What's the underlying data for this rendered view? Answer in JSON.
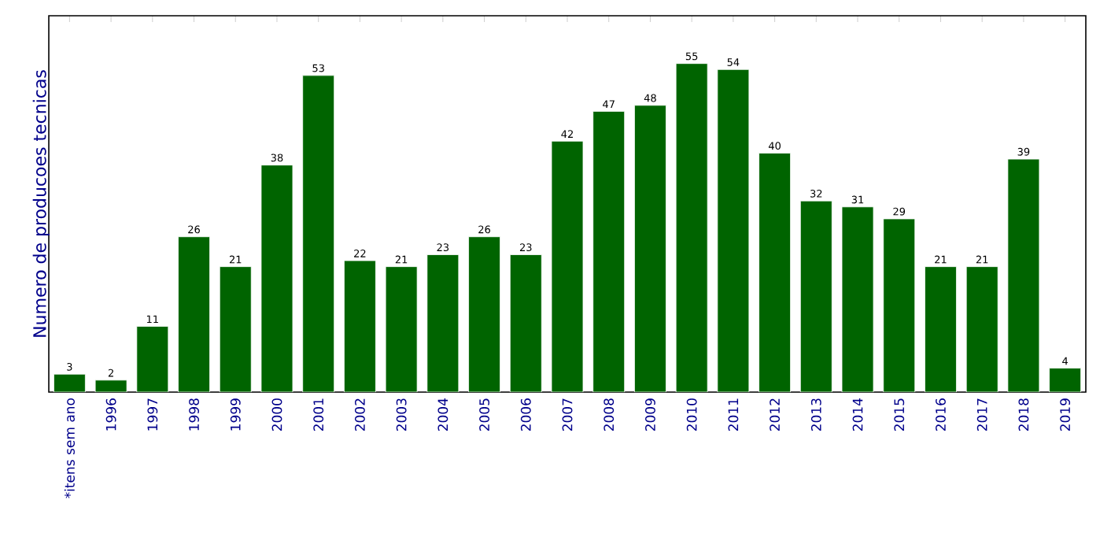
{
  "chart_data": {
    "type": "bar",
    "ylabel": "Numero de producoes tecnicas",
    "categories": [
      "*itens sem ano",
      "1996",
      "1997",
      "1998",
      "1999",
      "2000",
      "2001",
      "2002",
      "2003",
      "2004",
      "2005",
      "2006",
      "2007",
      "2008",
      "2009",
      "2010",
      "2011",
      "2012",
      "2013",
      "2014",
      "2015",
      "2016",
      "2017",
      "2018",
      "2019"
    ],
    "values": [
      3,
      2,
      11,
      26,
      21,
      38,
      53,
      22,
      21,
      23,
      26,
      23,
      42,
      47,
      48,
      55,
      54,
      40,
      32,
      31,
      29,
      21,
      21,
      39,
      4
    ],
    "color": "#006400",
    "ylim": [
      0,
      63
    ],
    "data_labels": true,
    "tick_labels": "x",
    "grid": false
  }
}
